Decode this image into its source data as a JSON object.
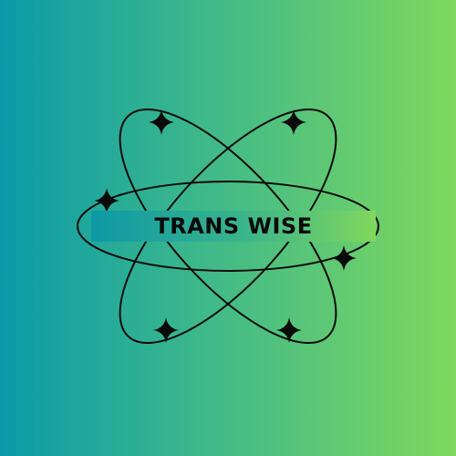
{
  "logo": {
    "brand_name": "TRANS WISE",
    "emblem": "atom-orbit-icon",
    "sparkle": "four-point-star-icon",
    "colors": {
      "background_left": "#0a9aa9",
      "background_right": "#7fd85d",
      "ink": "#0a0a0a"
    }
  }
}
